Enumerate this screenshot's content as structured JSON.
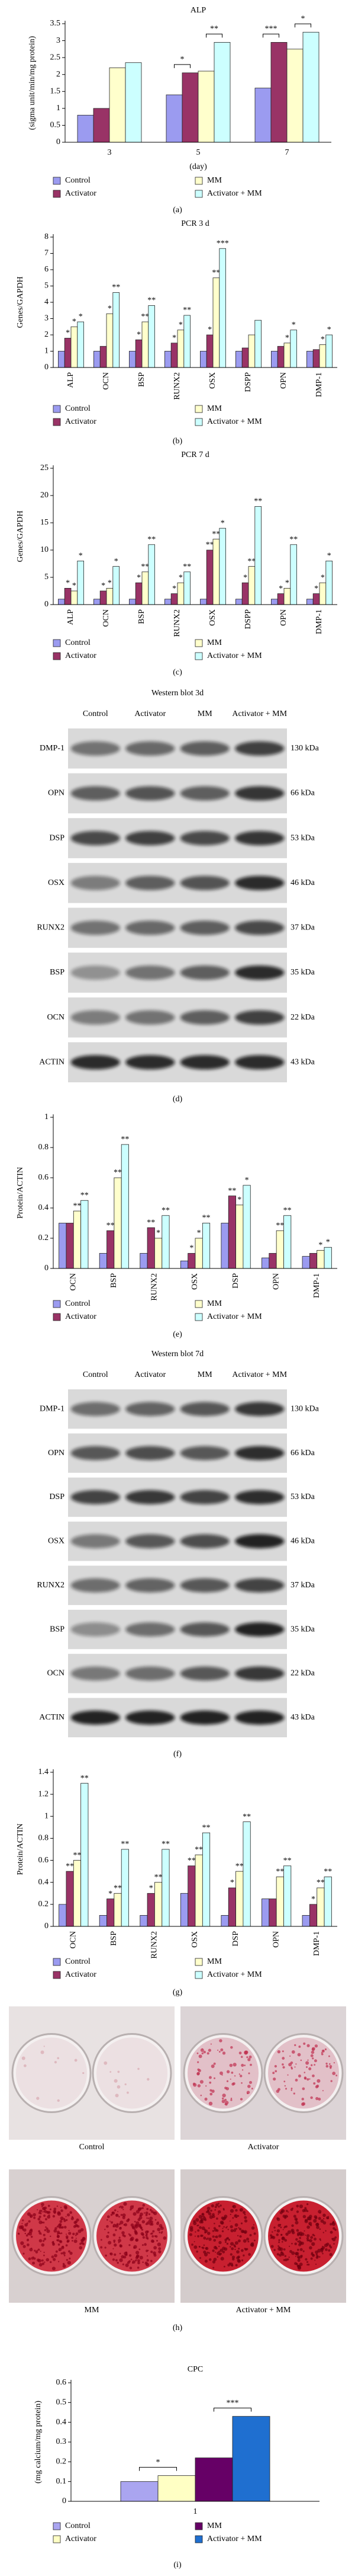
{
  "chart_data": [
    {
      "type": "bar",
      "title": "ALP",
      "ylabel": "(sigma unit/min/mg protein)",
      "xlabel": "(day)",
      "categories": [
        "3",
        "5",
        "7"
      ],
      "ylim": [
        0,
        3.5
      ],
      "yticks": [
        0,
        0.5,
        1,
        1.5,
        2,
        2.5,
        3,
        3.5
      ],
      "series": [
        {
          "name": "Control",
          "color": "#9b9bf0",
          "values": [
            0.8,
            1.4,
            1.6
          ]
        },
        {
          "name": "Activator",
          "color": "#993366",
          "values": [
            1.0,
            2.05,
            2.95
          ]
        },
        {
          "name": "MM",
          "color": "#ffffcc",
          "values": [
            2.2,
            2.1,
            2.75
          ]
        },
        {
          "name": "Activator + MM",
          "color": "#ccffff",
          "values": [
            2.35,
            2.95,
            3.25
          ]
        }
      ],
      "annotations": [
        {
          "text": "*",
          "category": 1,
          "from": 0,
          "to": 1
        },
        {
          "text": "**",
          "category": 1,
          "from": 2,
          "to": 3
        },
        {
          "text": "***",
          "category": 2,
          "from": 0,
          "to": 1
        },
        {
          "text": "*",
          "category": 2,
          "from": 2,
          "to": 3
        }
      ]
    },
    {
      "type": "bar",
      "title": "PCR 3 d",
      "ylabel": "Genes/GAPDH",
      "categories": [
        "ALP",
        "OCN",
        "BSP",
        "RUNX2",
        "OSX",
        "DSPP",
        "OPN",
        "DMP-1"
      ],
      "ylim": [
        0,
        8
      ],
      "yticks": [
        0,
        1,
        2,
        3,
        4,
        5,
        6,
        7,
        8
      ],
      "series": [
        {
          "name": "Control",
          "color": "#9b9bf0",
          "values": [
            1,
            1,
            1,
            1,
            1,
            1,
            1,
            1
          ]
        },
        {
          "name": "Activator",
          "color": "#993366",
          "values": [
            1.8,
            1.3,
            1.7,
            1.5,
            2.0,
            1.2,
            1.3,
            1.1
          ],
          "significance": [
            "*",
            null,
            "*",
            "*",
            "*",
            null,
            null,
            null
          ]
        },
        {
          "name": "MM",
          "color": "#ffffcc",
          "values": [
            2.5,
            3.3,
            2.8,
            2.3,
            5.5,
            2.0,
            1.5,
            1.4
          ],
          "significance": [
            "*",
            "*",
            "**",
            "*",
            "**",
            null,
            "*",
            "*"
          ]
        },
        {
          "name": "Activator + MM",
          "color": "#ccffff",
          "values": [
            2.8,
            4.6,
            3.8,
            3.2,
            7.3,
            2.9,
            2.3,
            2.0
          ],
          "significance": [
            "*",
            "**",
            "**",
            "**",
            "***",
            null,
            "*",
            "*"
          ]
        }
      ]
    },
    {
      "type": "bar",
      "title": "PCR 7 d",
      "ylabel": "Genes/GAPDH",
      "categories": [
        "ALP",
        "OCN",
        "BSP",
        "RUNX2",
        "OSX",
        "DSPP",
        "OPN",
        "DMP-1"
      ],
      "ylim": [
        0,
        25
      ],
      "yticks": [
        0,
        5,
        10,
        15,
        20,
        25
      ],
      "series": [
        {
          "name": "Control",
          "color": "#9b9bf0",
          "values": [
            1,
            1,
            1,
            1,
            1,
            1,
            1,
            1
          ]
        },
        {
          "name": "Activator",
          "color": "#993366",
          "values": [
            3,
            2.5,
            4,
            2,
            10,
            4,
            2,
            2
          ],
          "significance": [
            "*",
            "*",
            "*",
            "*",
            "**",
            "*",
            "*",
            "*"
          ]
        },
        {
          "name": "MM",
          "color": "#ffffcc",
          "values": [
            2.5,
            3,
            6,
            4,
            12,
            7,
            3,
            4
          ],
          "significance": [
            "*",
            "*",
            "**",
            "*",
            "**",
            "**",
            "*",
            "*"
          ]
        },
        {
          "name": "Activator + MM",
          "color": "#ccffff",
          "values": [
            8,
            7,
            11,
            6,
            14,
            18,
            11,
            8
          ],
          "significance": [
            "*",
            "*",
            "**",
            "**",
            "*",
            "**",
            "**",
            "*"
          ]
        }
      ]
    },
    {
      "type": "bar",
      "ylabel": "Protein/ACTIN",
      "categories": [
        "OCN",
        "BSP",
        "RUNX2",
        "OSX",
        "DSP",
        "OPN",
        "DMP-1"
      ],
      "ylim": [
        0,
        1
      ],
      "yticks": [
        0,
        0.2,
        0.4,
        0.6,
        0.8,
        1
      ],
      "series": [
        {
          "name": "Control",
          "color": "#9b9bf0",
          "values": [
            0.3,
            0.1,
            0.1,
            0.05,
            0.3,
            0.07,
            0.08
          ]
        },
        {
          "name": "Activator",
          "color": "#993366",
          "values": [
            0.3,
            0.25,
            0.27,
            0.1,
            0.48,
            0.1,
            0.1
          ],
          "significance": [
            null,
            "**",
            "**",
            "*",
            "**",
            null,
            null
          ]
        },
        {
          "name": "MM",
          "color": "#ffffcc",
          "values": [
            0.38,
            0.6,
            0.2,
            0.2,
            0.42,
            0.25,
            0.12
          ],
          "significance": [
            "**",
            "**",
            "*",
            "*",
            "*",
            "**",
            "*"
          ]
        },
        {
          "name": "Activator + MM",
          "color": "#ccffff",
          "values": [
            0.45,
            0.82,
            0.35,
            0.3,
            0.55,
            0.35,
            0.14
          ],
          "significance": [
            "**",
            "**",
            "**",
            "**",
            "*",
            "**",
            "*"
          ]
        }
      ]
    },
    {
      "type": "bar",
      "ylabel": "Protein/ACTIN",
      "categories": [
        "OCN",
        "BSP",
        "RUNX2",
        "OSX",
        "DSP",
        "OPN",
        "DMP-1"
      ],
      "ylim": [
        0,
        1.4
      ],
      "yticks": [
        0,
        0.2,
        0.4,
        0.6,
        0.8,
        1,
        1.2,
        1.4
      ],
      "series": [
        {
          "name": "Control",
          "color": "#9b9bf0",
          "values": [
            0.2,
            0.1,
            0.1,
            0.3,
            0.1,
            0.25,
            0.1
          ]
        },
        {
          "name": "Activator",
          "color": "#993366",
          "values": [
            0.5,
            0.25,
            0.3,
            0.55,
            0.35,
            0.25,
            0.2
          ],
          "significance": [
            "**",
            "*",
            "*",
            "**",
            "*",
            null,
            "*"
          ]
        },
        {
          "name": "MM",
          "color": "#ffffcc",
          "values": [
            0.6,
            0.3,
            0.4,
            0.65,
            0.5,
            0.45,
            0.35
          ],
          "significance": [
            "**",
            "**",
            "**",
            "**",
            "**",
            "**",
            "**"
          ]
        },
        {
          "name": "Activator + MM",
          "color": "#ccffff",
          "values": [
            1.3,
            0.7,
            0.7,
            0.85,
            0.95,
            0.55,
            0.45
          ],
          "significance": [
            "**",
            "**",
            "**",
            "**",
            "**",
            "**",
            "**"
          ]
        }
      ]
    },
    {
      "type": "bar",
      "title": "CPC",
      "ylabel": "(mg calcium/mg protein)",
      "categories": [
        "1"
      ],
      "ylim": [
        0,
        0.6
      ],
      "yticks": [
        0,
        0.1,
        0.2,
        0.3,
        0.4,
        0.5,
        0.6
      ],
      "series": [
        {
          "name": "Control",
          "color": "#aaa5f0",
          "values": [
            0.1
          ]
        },
        {
          "name": "Activator",
          "color": "#ffffc4",
          "values": [
            0.13
          ]
        },
        {
          "name": "MM",
          "color": "#660066",
          "values": [
            0.22
          ]
        },
        {
          "name": "Activator + MM",
          "color": "#1f6fd0",
          "values": [
            0.43
          ]
        }
      ],
      "annotations": [
        {
          "text": "*",
          "category": 0,
          "from": 0,
          "to": 1
        },
        {
          "text": "***",
          "category": 0,
          "from": 2,
          "to": 3
        }
      ]
    }
  ],
  "blots": [
    {
      "title": "Western blot 3d",
      "lanes": [
        "Control",
        "Activator",
        "MM",
        "Activator + MM"
      ],
      "rows": [
        {
          "protein": "DMP-1",
          "size": "130 kDa"
        },
        {
          "protein": "OPN",
          "size": "66 kDa"
        },
        {
          "protein": "DSP",
          "size": "53 kDa"
        },
        {
          "protein": "OSX",
          "size": "46 kDa"
        },
        {
          "protein": "RUNX2",
          "size": "37 kDa"
        },
        {
          "protein": "BSP",
          "size": "35 kDa"
        },
        {
          "protein": "OCN",
          "size": "22 kDa"
        },
        {
          "protein": "ACTIN",
          "size": "43 kDa"
        }
      ]
    },
    {
      "title": "Western blot 7d",
      "lanes": [
        "Control",
        "Activator",
        "MM",
        "Activator + MM"
      ],
      "rows": [
        {
          "protein": "DMP-1",
          "size": "130 kDa"
        },
        {
          "protein": "OPN",
          "size": "66 kDa"
        },
        {
          "protein": "DSP",
          "size": "53 kDa"
        },
        {
          "protein": "OSX",
          "size": "46 kDa"
        },
        {
          "protein": "RUNX2",
          "size": "37 kDa"
        },
        {
          "protein": "BSP",
          "size": "35 kDa"
        },
        {
          "protein": "OCN",
          "size": "22 kDa"
        },
        {
          "protein": "ACTIN",
          "size": "43 kDa"
        }
      ]
    }
  ],
  "wells": [
    "Control",
    "Activator",
    "MM",
    "Activator + MM"
  ],
  "panel_labels": [
    "(a)",
    "(b)",
    "(c)",
    "(d)",
    "(e)",
    "(f)",
    "(g)",
    "(h)",
    "(i)"
  ]
}
